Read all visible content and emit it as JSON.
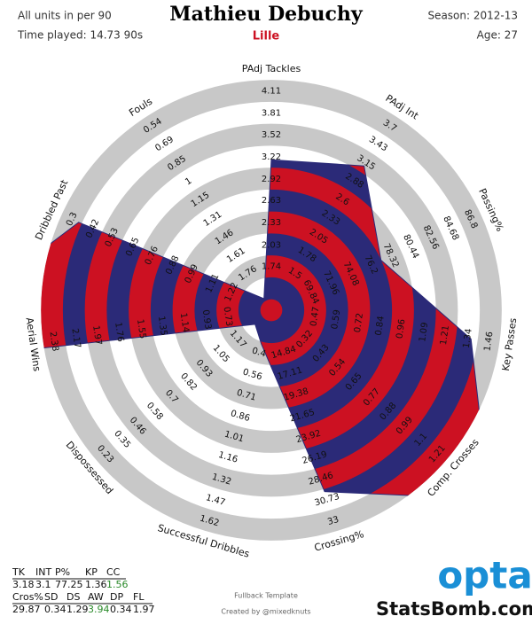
{
  "header": {
    "units_note": "All units in per 90",
    "time_played": "Time played: 14.73 90s",
    "title": "Mathieu Debuchy",
    "team": "Lille",
    "season": "Season: 2012-13",
    "age": "Age: 27"
  },
  "chart_data": {
    "type": "radar",
    "colors": [
      "#cc1122",
      "#2b2a78"
    ],
    "ring_color": "#c8c8c8",
    "axes": [
      {
        "name": "PAdj Tackles",
        "value": 3.18,
        "ticks": [
          1.74,
          2.03,
          2.33,
          2.63,
          2.92,
          3.22,
          3.52,
          3.81,
          4.11
        ]
      },
      {
        "name": "PAdj Int",
        "value": 3.1,
        "ticks": [
          1.5,
          1.78,
          2.05,
          2.33,
          2.6,
          2.88,
          3.15,
          3.43,
          3.7
        ]
      },
      {
        "name": "Passing%",
        "value": 77.25,
        "ticks": [
          69.84,
          71.96,
          74.08,
          76.2,
          78.32,
          80.44,
          82.56,
          84.68,
          86.8
        ]
      },
      {
        "name": "Key Passes",
        "value": 1.36,
        "ticks": [
          0.47,
          0.59,
          0.72,
          0.84,
          0.96,
          1.09,
          1.21,
          1.34,
          1.46
        ]
      },
      {
        "name": "Comp. Crosses",
        "value": 1.56,
        "ticks": [
          0.32,
          0.43,
          0.54,
          0.65,
          0.77,
          0.88,
          0.99,
          1.1,
          1.21
        ]
      },
      {
        "name": "Crossing%",
        "value": 29.87,
        "ticks": [
          14.84,
          17.11,
          19.38,
          21.65,
          23.92,
          26.19,
          28.46,
          30.73,
          33
        ]
      },
      {
        "name": "Successful Dribbles",
        "value": 0.34,
        "ticks": [
          0.4,
          0.56,
          0.71,
          0.86,
          1.01,
          1.16,
          1.32,
          1.47,
          1.62
        ]
      },
      {
        "name": "Dispossessed",
        "value": 1.29,
        "ticks": [
          1.17,
          1.05,
          0.93,
          0.82,
          0.7,
          0.58,
          0.46,
          0.35,
          0.23
        ]
      },
      {
        "name": "Aerial Wins",
        "value": 3.94,
        "ticks": [
          0.73,
          0.93,
          1.14,
          1.35,
          1.55,
          1.76,
          1.97,
          2.17,
          2.38
        ]
      },
      {
        "name": "Dribbled Past",
        "value": 0.34,
        "ticks": [
          1.22,
          1.11,
          0.99,
          0.88,
          0.76,
          0.65,
          0.53,
          0.42,
          0.3
        ]
      },
      {
        "name": "Fouls",
        "value": 1.97,
        "ticks": [
          1.76,
          1.61,
          1.46,
          1.31,
          1.15,
          1,
          0.85,
          0.69,
          0.54
        ]
      }
    ]
  },
  "stats_table": {
    "rows": [
      [
        "TK",
        "INT",
        "P%",
        "KP",
        "CC"
      ],
      [
        3.18,
        3.1,
        77.25,
        1.36,
        1.56
      ],
      [
        "Cros%",
        "SD",
        "DS",
        "AW",
        "DP",
        "FL"
      ],
      [
        29.87,
        0.34,
        1.29,
        3.94,
        0.34,
        1.97
      ]
    ]
  },
  "footer": {
    "template": "Fullback Template",
    "credit": "Created by @mixedknuts",
    "logo": "opta",
    "site": "StatsBomb.com"
  }
}
